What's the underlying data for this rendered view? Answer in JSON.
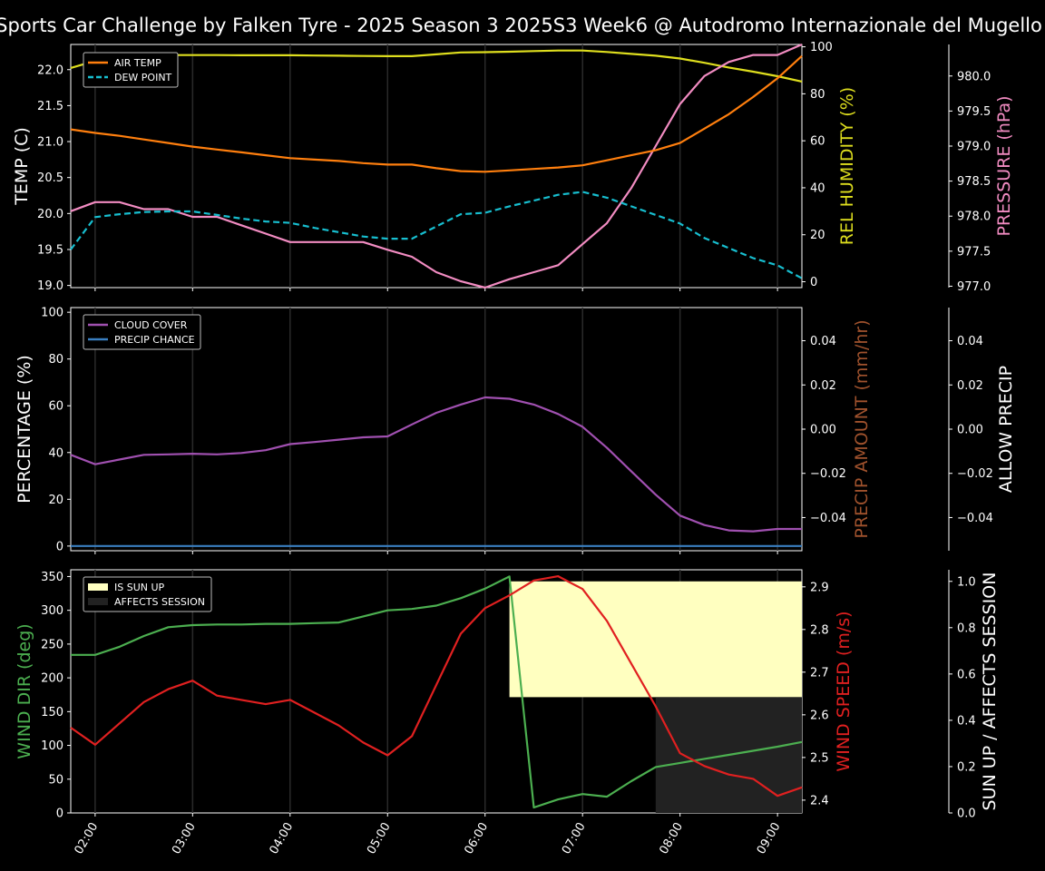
{
  "title": "Sports Car Challenge by Falken Tyre - 2025 Season 3 2025S3 Week6 @ Autodromo Internazionale del Mugello",
  "colors": {
    "air_temp": "#ff7f0e",
    "dew_point": "#17becf",
    "humidity": "#dede1e",
    "pressure": "#f28cc2",
    "cloud": "#a050b0",
    "precip": "#3a7fc1",
    "wind_dir": "#4caf50",
    "wind_speed": "#e02020",
    "sun_up": "#ffffc0",
    "affects": "#222222",
    "precip_amount_label": "#a0522d"
  },
  "chart_data": [
    {
      "type": "line",
      "x": [
        "01:45",
        "02:00",
        "02:15",
        "02:30",
        "02:45",
        "03:00",
        "03:15",
        "03:30",
        "03:45",
        "04:00",
        "04:15",
        "04:30",
        "04:45",
        "05:00",
        "05:15",
        "05:30",
        "05:45",
        "06:00",
        "06:15",
        "06:30",
        "06:45",
        "07:00",
        "07:15",
        "07:30",
        "07:45",
        "08:00",
        "08:15",
        "08:30",
        "08:45",
        "09:00",
        "09:15"
      ],
      "xticks": [
        "02:00",
        "03:00",
        "04:00",
        "05:00",
        "06:00",
        "07:00",
        "08:00",
        "09:00"
      ],
      "ylabel": "TEMP (C)",
      "ylim": [
        18.97,
        22.35
      ],
      "yticks": [
        "19.0",
        "19.5",
        "20.0",
        "20.5",
        "21.0",
        "21.5",
        "22.0"
      ],
      "y2label": "REL HUMIDITY (%)",
      "y2lim": [
        -2.5,
        101
      ],
      "y2ticks": [
        "0",
        "20",
        "40",
        "60",
        "80",
        "100"
      ],
      "y3label": "PRESSURE (hPa)",
      "y3lim": [
        976.98,
        980.45
      ],
      "y3ticks": [
        "977.0",
        "977.5",
        "978.0",
        "978.5",
        "979.0",
        "979.5",
        "980.0"
      ],
      "legend": [
        "AIR TEMP",
        "DEW POINT"
      ],
      "series": [
        {
          "name": "AIR TEMP",
          "axis": "left",
          "values": [
            21.17,
            21.12,
            21.08,
            21.03,
            20.98,
            20.93,
            20.89,
            20.85,
            20.81,
            20.77,
            20.75,
            20.73,
            20.7,
            20.68,
            20.68,
            20.63,
            20.59,
            20.58,
            20.6,
            20.62,
            20.64,
            20.67,
            20.74,
            20.81,
            20.88,
            20.98,
            21.18,
            21.38,
            21.62,
            21.88,
            22.19
          ]
        },
        {
          "name": "DEW POINT",
          "axis": "left",
          "values": [
            19.5,
            19.95,
            19.99,
            20.02,
            20.03,
            20.03,
            19.98,
            19.93,
            19.89,
            19.87,
            19.8,
            19.74,
            19.68,
            19.65,
            19.65,
            19.82,
            19.99,
            20.01,
            20.1,
            20.18,
            20.26,
            20.3,
            20.22,
            20.1,
            19.98,
            19.86,
            19.66,
            19.52,
            19.38,
            19.28,
            19.1
          ]
        },
        {
          "name": "REL HUMIDITY",
          "axis": "right",
          "values": [
            91,
            94,
            95,
            96,
            96.5,
            96.5,
            96.5,
            96.4,
            96.4,
            96.4,
            96.3,
            96.2,
            96.1,
            96.0,
            96.0,
            96.8,
            97.6,
            97.7,
            97.9,
            98.2,
            98.4,
            98.4,
            97.8,
            97.0,
            96.2,
            95.0,
            93.2,
            91.2,
            89.4,
            87.5,
            85.2
          ]
        },
        {
          "name": "PRESSURE",
          "axis": "right2",
          "values": [
            978.07,
            978.2,
            978.2,
            978.1,
            978.1,
            977.99,
            977.99,
            977.87,
            977.75,
            977.63,
            977.63,
            977.63,
            977.63,
            977.52,
            977.42,
            977.2,
            977.07,
            976.98,
            977.1,
            977.2,
            977.3,
            977.6,
            977.9,
            978.4,
            979.0,
            979.6,
            980.0,
            980.2,
            980.3,
            980.3,
            980.45
          ]
        }
      ]
    },
    {
      "type": "line",
      "ylabel": "PERCENTAGE (%)",
      "ylim": [
        -2,
        102
      ],
      "yticks": [
        "0",
        "20",
        "40",
        "60",
        "80",
        "100"
      ],
      "y2label": "PRECIP AMOUNT (mm/hr)",
      "y2ticks": [
        "−0.04",
        "−0.02",
        "0.00",
        "0.02",
        "0.04"
      ],
      "y3label": "ALLOW PRECIP",
      "y3ticks": [
        "−0.04",
        "−0.02",
        "0.00",
        "0.02",
        "0.04"
      ],
      "legend": [
        "CLOUD COVER",
        "PRECIP CHANCE"
      ],
      "series": [
        {
          "name": "CLOUD COVER",
          "values": [
            39,
            35,
            37,
            39,
            39.2,
            39.5,
            39.2,
            39.8,
            41,
            43.6,
            44.5,
            45.5,
            46.5,
            46.9,
            52,
            57,
            60.5,
            63.6,
            63,
            60.5,
            56.5,
            51,
            42,
            32,
            22,
            13,
            9,
            6.7,
            6.3,
            7.3,
            7.3
          ]
        },
        {
          "name": "PRECIP CHANCE",
          "values": [
            0,
            0,
            0,
            0,
            0,
            0,
            0,
            0,
            0,
            0,
            0,
            0,
            0,
            0,
            0,
            0,
            0,
            0,
            0,
            0,
            0,
            0,
            0,
            0,
            0,
            0,
            0,
            0,
            0,
            0,
            0
          ]
        }
      ]
    },
    {
      "type": "line",
      "ylabel": "WIND DIR (deg)",
      "ylim": [
        0,
        360
      ],
      "yticks": [
        "0",
        "50",
        "100",
        "150",
        "200",
        "250",
        "300",
        "350"
      ],
      "y2label": "WIND SPEED (m/s)",
      "y2lim": [
        2.37,
        2.94
      ],
      "y2ticks": [
        "2.4",
        "2.5",
        "2.6",
        "2.7",
        "2.8",
        "2.9"
      ],
      "y3label": "SUN UP / AFFECTS SESSION",
      "y3lim": [
        0,
        1.05
      ],
      "y3ticks": [
        "0.0",
        "0.2",
        "0.4",
        "0.6",
        "0.8",
        "1.0"
      ],
      "legend": [
        "IS SUN UP",
        "AFFECTS SESSION"
      ],
      "series": [
        {
          "name": "WIND DIR",
          "values": [
            234,
            234,
            246,
            262,
            275,
            278,
            279,
            279,
            280,
            280,
            281,
            282,
            291,
            300,
            302,
            307,
            318,
            332,
            350,
            8,
            20,
            28,
            24,
            47,
            68,
            74,
            80,
            86,
            92,
            98,
            105
          ]
        },
        {
          "name": "WIND SPEED",
          "values": [
            2.57,
            2.53,
            2.58,
            2.63,
            2.66,
            2.68,
            2.645,
            2.635,
            2.625,
            2.635,
            2.605,
            2.575,
            2.535,
            2.505,
            2.55,
            2.67,
            2.79,
            2.85,
            2.88,
            2.915,
            2.925,
            2.895,
            2.82,
            2.72,
            2.62,
            2.51,
            2.48,
            2.46,
            2.45,
            2.41,
            2.43
          ]
        }
      ],
      "sun_up": {
        "start": "06:15",
        "end": "09:15",
        "level": 1.0
      },
      "affects_session": {
        "start": "07:45",
        "end": "09:15",
        "level": 0.5
      }
    }
  ]
}
